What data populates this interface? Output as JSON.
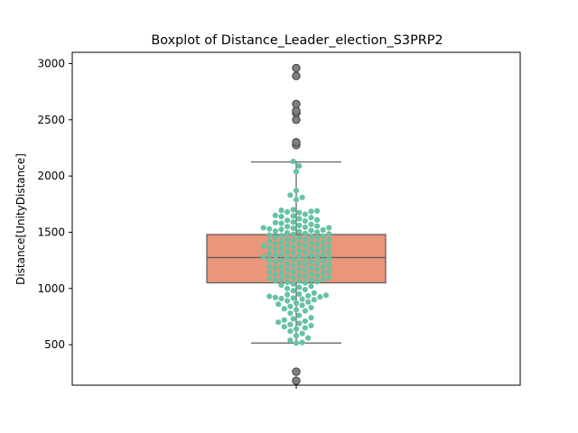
{
  "chart_data": {
    "type": "boxplot",
    "title": "Boxplot of Distance_Leader_election_S3PRP2",
    "xlabel": "",
    "ylabel": "Distance[UnityDistance]",
    "ylim": [
      140,
      3100
    ],
    "yticks": [
      500,
      1000,
      1500,
      2000,
      2500,
      3000
    ],
    "grid": false,
    "colors": {
      "box": "#e9967a",
      "swarm": "#66c2a5",
      "outlier": "#808080",
      "line": "#5a5a5a"
    },
    "box": {
      "q1": 1050,
      "median": 1275,
      "q3": 1480,
      "whisker_low": 515,
      "whisker_high": 2125,
      "outliers": [
        180,
        260,
        2275,
        2300,
        2500,
        2560,
        2580,
        2640,
        2890,
        2960
      ]
    },
    "swarm_points": [
      2130,
      2090,
      2040,
      1870,
      1830,
      1810,
      1790,
      1700,
      1695,
      1690,
      1685,
      1680,
      1675,
      1660,
      1650,
      1645,
      1640,
      1630,
      1620,
      1610,
      1605,
      1600,
      1590,
      1585,
      1580,
      1570,
      1560,
      1555,
      1550,
      1545,
      1540,
      1540,
      1535,
      1530,
      1525,
      1520,
      1515,
      1510,
      1505,
      1500,
      1495,
      1490,
      1485,
      1480,
      1475,
      1470,
      1465,
      1460,
      1455,
      1450,
      1445,
      1440,
      1435,
      1430,
      1425,
      1420,
      1415,
      1410,
      1405,
      1400,
      1395,
      1390,
      1385,
      1380,
      1380,
      1375,
      1370,
      1365,
      1360,
      1355,
      1350,
      1345,
      1340,
      1335,
      1330,
      1325,
      1320,
      1315,
      1310,
      1305,
      1300,
      1295,
      1290,
      1285,
      1280,
      1280,
      1275,
      1270,
      1265,
      1260,
      1255,
      1250,
      1245,
      1240,
      1235,
      1230,
      1225,
      1220,
      1215,
      1210,
      1205,
      1200,
      1195,
      1190,
      1185,
      1180,
      1175,
      1170,
      1165,
      1160,
      1155,
      1150,
      1145,
      1140,
      1135,
      1130,
      1125,
      1120,
      1115,
      1110,
      1105,
      1100,
      1095,
      1090,
      1085,
      1080,
      1075,
      1070,
      1065,
      1060,
      1055,
      1050,
      1040,
      1030,
      1020,
      1010,
      1000,
      990,
      980,
      960,
      950,
      945,
      940,
      935,
      930,
      925,
      920,
      915,
      910,
      905,
      900,
      890,
      880,
      870,
      860,
      850,
      840,
      830,
      820,
      810,
      800,
      780,
      760,
      740,
      730,
      720,
      710,
      700,
      690,
      680,
      670,
      660,
      650,
      640,
      620,
      600,
      580,
      560,
      540,
      520,
      515
    ]
  }
}
